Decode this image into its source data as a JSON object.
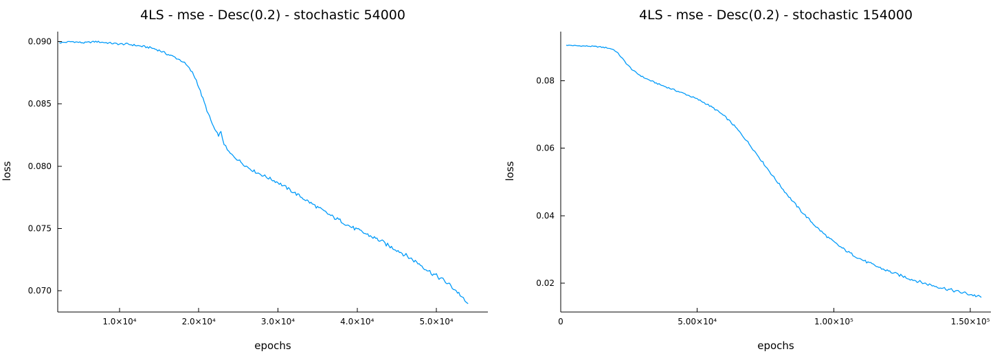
{
  "chart_data": [
    {
      "type": "line",
      "title": "4LS - mse - Desc(0.2) - stochastic 54000",
      "xlabel": "epochs",
      "ylabel": "loss",
      "line_color": "#009af9",
      "xlim": [
        2200,
        56500
      ],
      "ylim": [
        0.0683,
        0.0908
      ],
      "grid": false,
      "legend": "none",
      "noise": 0.00018,
      "xticks": [
        {
          "v": 10000,
          "label": "1.0×10⁴"
        },
        {
          "v": 20000,
          "label": "2.0×10⁴"
        },
        {
          "v": 30000,
          "label": "3.0×10⁴"
        },
        {
          "v": 40000,
          "label": "4.0×10⁴"
        },
        {
          "v": 50000,
          "label": "5.0×10⁴"
        }
      ],
      "yticks": [
        {
          "v": 0.07,
          "label": "0.070"
        },
        {
          "v": 0.075,
          "label": "0.075"
        },
        {
          "v": 0.08,
          "label": "0.080"
        },
        {
          "v": 0.085,
          "label": "0.085"
        },
        {
          "v": 0.09,
          "label": "0.090"
        }
      ],
      "points": [
        [
          2400,
          0.0899
        ],
        [
          4000,
          0.09
        ],
        [
          5500,
          0.0899
        ],
        [
          7000,
          0.09
        ],
        [
          8500,
          0.0899
        ],
        [
          10000,
          0.0898
        ],
        [
          11000,
          0.0898
        ],
        [
          12000,
          0.0897
        ],
        [
          13000,
          0.0896
        ],
        [
          14000,
          0.0895
        ],
        [
          15000,
          0.0893
        ],
        [
          16000,
          0.089
        ],
        [
          16800,
          0.0888
        ],
        [
          17400,
          0.0886
        ],
        [
          18000,
          0.0884
        ],
        [
          18600,
          0.088
        ],
        [
          19200,
          0.0875
        ],
        [
          19700,
          0.0869
        ],
        [
          20200,
          0.086
        ],
        [
          20700,
          0.0851
        ],
        [
          21200,
          0.0842
        ],
        [
          21700,
          0.0834
        ],
        [
          22200,
          0.0827
        ],
        [
          22500,
          0.0825
        ],
        [
          22800,
          0.0827
        ],
        [
          23200,
          0.0818
        ],
        [
          23600,
          0.0813
        ],
        [
          24000,
          0.081
        ],
        [
          25000,
          0.0805
        ],
        [
          26000,
          0.08
        ],
        [
          27000,
          0.0796
        ],
        [
          28000,
          0.0793
        ],
        [
          29000,
          0.079
        ],
        [
          30000,
          0.0787
        ],
        [
          31000,
          0.0783
        ],
        [
          32000,
          0.0779
        ],
        [
          33000,
          0.0775
        ],
        [
          34000,
          0.0771
        ],
        [
          35000,
          0.0767
        ],
        [
          36000,
          0.0763
        ],
        [
          37000,
          0.0759
        ],
        [
          38000,
          0.0756
        ],
        [
          39000,
          0.0752
        ],
        [
          40000,
          0.0749
        ],
        [
          41000,
          0.0746
        ],
        [
          42000,
          0.0743
        ],
        [
          43000,
          0.074
        ],
        [
          44000,
          0.0736
        ],
        [
          45000,
          0.0733
        ],
        [
          46000,
          0.0729
        ],
        [
          47000,
          0.0725
        ],
        [
          48000,
          0.0721
        ],
        [
          49000,
          0.0716
        ],
        [
          50000,
          0.0712
        ],
        [
          51000,
          0.0708
        ],
        [
          52000,
          0.0703
        ],
        [
          53000,
          0.0697
        ],
        [
          53600,
          0.0691
        ],
        [
          54000,
          0.069
        ]
      ]
    },
    {
      "type": "line",
      "title": "4LS - mse - Desc(0.2) - stochastic 154000",
      "xlabel": "epochs",
      "ylabel": "loss",
      "line_color": "#009af9",
      "xlim": [
        0,
        157500
      ],
      "ylim": [
        0.0115,
        0.0945
      ],
      "grid": false,
      "legend": "none",
      "noise": 0.00045,
      "xticks": [
        {
          "v": 0,
          "label": "0"
        },
        {
          "v": 50000,
          "label": "5.00×10⁴"
        },
        {
          "v": 100000,
          "label": "1.00×10⁵"
        },
        {
          "v": 150000,
          "label": "1.50×10⁵"
        }
      ],
      "yticks": [
        {
          "v": 0.02,
          "label": "0.02"
        },
        {
          "v": 0.04,
          "label": "0.04"
        },
        {
          "v": 0.06,
          "label": "0.06"
        },
        {
          "v": 0.08,
          "label": "0.08"
        }
      ],
      "points": [
        [
          2000,
          0.0905
        ],
        [
          6000,
          0.0903
        ],
        [
          10000,
          0.0902
        ],
        [
          14000,
          0.09
        ],
        [
          17000,
          0.0897
        ],
        [
          19000,
          0.0893
        ],
        [
          20000,
          0.0888
        ],
        [
          21000,
          0.088
        ],
        [
          22000,
          0.0871
        ],
        [
          23000,
          0.0861
        ],
        [
          24000,
          0.0851
        ],
        [
          25000,
          0.0842
        ],
        [
          26000,
          0.0834
        ],
        [
          27000,
          0.0827
        ],
        [
          28000,
          0.0821
        ],
        [
          30000,
          0.0811
        ],
        [
          32000,
          0.0803
        ],
        [
          34000,
          0.0796
        ],
        [
          36000,
          0.0789
        ],
        [
          38000,
          0.0783
        ],
        [
          40000,
          0.0777
        ],
        [
          42000,
          0.0771
        ],
        [
          44000,
          0.0765
        ],
        [
          46000,
          0.0759
        ],
        [
          48000,
          0.0752
        ],
        [
          50000,
          0.0745
        ],
        [
          52000,
          0.0737
        ],
        [
          54000,
          0.0728
        ],
        [
          56000,
          0.0718
        ],
        [
          58000,
          0.0707
        ],
        [
          60000,
          0.0694
        ],
        [
          62000,
          0.0679
        ],
        [
          64000,
          0.0662
        ],
        [
          66000,
          0.0643
        ],
        [
          68000,
          0.0623
        ],
        [
          70000,
          0.0602
        ],
        [
          72000,
          0.058
        ],
        [
          74000,
          0.0558
        ],
        [
          76000,
          0.0536
        ],
        [
          78000,
          0.0514
        ],
        [
          80000,
          0.0493
        ],
        [
          82000,
          0.0472
        ],
        [
          84000,
          0.0452
        ],
        [
          86000,
          0.0433
        ],
        [
          88000,
          0.0414
        ],
        [
          90000,
          0.0397
        ],
        [
          92000,
          0.038
        ],
        [
          94000,
          0.0364
        ],
        [
          96000,
          0.0349
        ],
        [
          98000,
          0.0335
        ],
        [
          100000,
          0.0322
        ],
        [
          102000,
          0.031
        ],
        [
          104000,
          0.0299
        ],
        [
          106000,
          0.0289
        ],
        [
          108000,
          0.028
        ],
        [
          110000,
          0.0271
        ],
        [
          112000,
          0.0263
        ],
        [
          114000,
          0.0256
        ],
        [
          116000,
          0.0249
        ],
        [
          118000,
          0.0242
        ],
        [
          120000,
          0.0236
        ],
        [
          122000,
          0.023
        ],
        [
          124000,
          0.0224
        ],
        [
          126000,
          0.0219
        ],
        [
          128000,
          0.0213
        ],
        [
          130000,
          0.0208
        ],
        [
          132000,
          0.0203
        ],
        [
          134000,
          0.0198
        ],
        [
          136000,
          0.0194
        ],
        [
          138000,
          0.019
        ],
        [
          140000,
          0.0186
        ],
        [
          142000,
          0.0182
        ],
        [
          144000,
          0.0178
        ],
        [
          146000,
          0.0174
        ],
        [
          148000,
          0.0171
        ],
        [
          150000,
          0.0167
        ],
        [
          152000,
          0.0163
        ],
        [
          154000,
          0.0158
        ]
      ]
    }
  ]
}
